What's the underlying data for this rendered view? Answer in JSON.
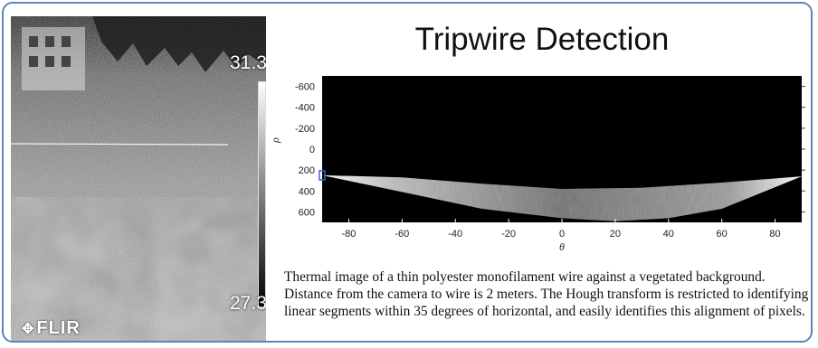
{
  "slide": {
    "title": "Tripwire Detection",
    "caption": "Thermal image of a thin polyester monofilament wire against a vegetated background.  Distance from the camera to wire is 2 meters. The Hough transform is restricted to identifying linear segments within 35 degrees of horizontal, and easily identifies this alignment of pixels."
  },
  "thermal_image": {
    "temp_max": "31.3",
    "temp_min": "27.3",
    "logo_text": "FLIR",
    "logo_icon": "flir-logo-icon",
    "scale_colors": [
      "#ffffff",
      "#000000"
    ]
  },
  "chart_data": {
    "type": "heatmap",
    "title": "",
    "xlabel": "θ",
    "ylabel": "ρ",
    "xlim": [
      -90,
      90
    ],
    "ylim": [
      -700,
      700
    ],
    "y_inverted": true,
    "xticks": [
      "-80",
      "-60",
      "-40",
      "-20",
      "0",
      "20",
      "40",
      "60",
      "80"
    ],
    "yticks": [
      "-600",
      "-400",
      "-200",
      "0",
      "200",
      "400",
      "600"
    ],
    "colormap": [
      "#000000",
      "#ffffff"
    ],
    "upper_boundary": [
      [
        -90,
        250
      ],
      [
        -60,
        270
      ],
      [
        -30,
        330
      ],
      [
        0,
        380
      ],
      [
        30,
        370
      ],
      [
        60,
        320
      ],
      [
        90,
        260
      ]
    ],
    "lower_boundary": [
      [
        -90,
        250
      ],
      [
        -60,
        410
      ],
      [
        -30,
        570
      ],
      [
        0,
        660
      ],
      [
        20,
        690
      ],
      [
        40,
        660
      ],
      [
        60,
        570
      ],
      [
        90,
        260
      ]
    ],
    "highlight_peak": [
      -90,
      250
    ]
  }
}
